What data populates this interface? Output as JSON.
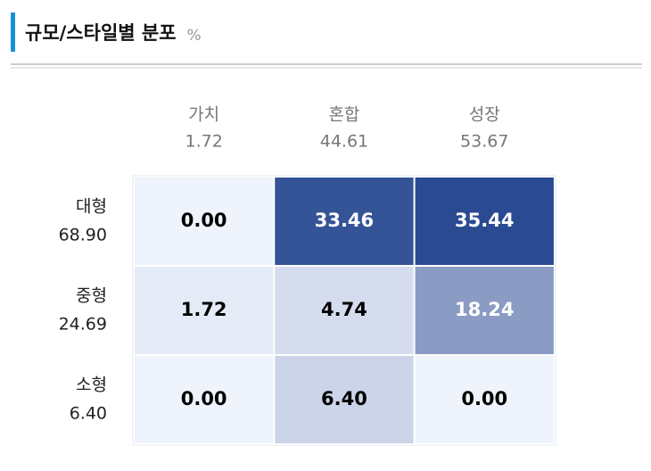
{
  "header": {
    "title": "규모/스타일별 분포",
    "unit": "%"
  },
  "table": {
    "columns": [
      {
        "name": "가치",
        "total": "1.72"
      },
      {
        "name": "혼합",
        "total": "44.61"
      },
      {
        "name": "성장",
        "total": "53.67"
      }
    ],
    "rows": [
      {
        "name": "대형",
        "total": "68.90",
        "cells": [
          "0.00",
          "33.46",
          "35.44"
        ]
      },
      {
        "name": "중형",
        "total": "24.69",
        "cells": [
          "1.72",
          "4.74",
          "18.24"
        ]
      },
      {
        "name": "소형",
        "total": "6.40",
        "cells": [
          "0.00",
          "6.40",
          "0.00"
        ]
      }
    ]
  }
}
